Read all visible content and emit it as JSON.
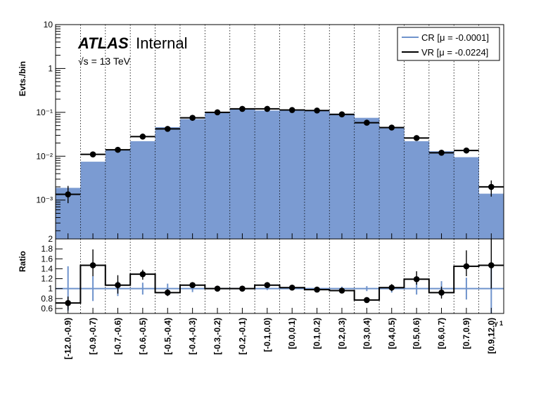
{
  "chart_data": [
    {
      "type": "bar",
      "panel": "main",
      "ylabel": "Evts./bin",
      "yscale": "log",
      "ylim": [
        0.00013,
        10
      ],
      "yticks": [
        {
          "value": 10,
          "label": "10"
        },
        {
          "value": 1,
          "label": "1"
        },
        {
          "value": 0.1,
          "label": "10⁻¹"
        },
        {
          "value": 0.01,
          "label": "10⁻²"
        },
        {
          "value": 0.001,
          "label": "10⁻³"
        }
      ],
      "grid_x": true,
      "legend_position": "top-right",
      "annotation": {
        "atlas": "ATLAS",
        "status": "Internal",
        "energy": "√s = 13 TeV"
      },
      "categories": [
        "[-12.0,-0.9)",
        "[-0.9,-0.7)",
        "[-0.7,-0.6)",
        "[-0.6,-0.5)",
        "[-0.5,-0.4)",
        "[-0.4,-0.3)",
        "[-0.3,-0.2)",
        "[-0.2,-0.1)",
        "[-0.1,0.0)",
        "[0.0,0.1)",
        "[0.1,0.2)",
        "[0.2,0.3)",
        "[0.3,0.4)",
        "[0.4,0.5)",
        "[0.5,0.6)",
        "[0.6,0.7)",
        "[0.7,0.9)",
        "[0.9,12.0)"
      ],
      "series": [
        {
          "name": "CR [μ = -0.0001]",
          "style": "filled-histogram",
          "color": "#7b9bd2",
          "legend_color": "#6f93cc",
          "values": [
            0.0019,
            0.0075,
            0.014,
            0.022,
            0.046,
            0.07,
            0.1,
            0.12,
            0.11,
            0.11,
            0.11,
            0.093,
            0.075,
            0.044,
            0.022,
            0.013,
            0.0095,
            0.0014
          ]
        },
        {
          "name": "VR [μ = -0.0224]",
          "style": "points-with-errors",
          "color": "#000000",
          "values": [
            0.00135,
            0.011,
            0.014,
            0.028,
            0.042,
            0.075,
            0.1,
            0.12,
            0.12,
            0.113,
            0.11,
            0.09,
            0.058,
            0.045,
            0.026,
            0.012,
            0.0135,
            0.002
          ],
          "err_low": [
            0.00085,
            0.0095,
            0.0125,
            0.0255,
            0.039,
            0.071,
            0.095,
            0.115,
            0.115,
            0.108,
            0.105,
            0.086,
            0.055,
            0.042,
            0.0235,
            0.0105,
            0.0115,
            0.0012
          ],
          "err_high": [
            0.0021,
            0.0128,
            0.016,
            0.031,
            0.045,
            0.079,
            0.105,
            0.126,
            0.126,
            0.118,
            0.115,
            0.094,
            0.062,
            0.048,
            0.0285,
            0.0135,
            0.0155,
            0.0028
          ]
        }
      ]
    },
    {
      "type": "bar",
      "panel": "ratio",
      "ylabel": "Ratio",
      "xlabel": "γ 1",
      "ylim": [
        0.5,
        2
      ],
      "yticks": [
        {
          "value": 0.6,
          "label": "0.6"
        },
        {
          "value": 0.8,
          "label": "0.8"
        },
        {
          "value": 1.0,
          "label": "1"
        },
        {
          "value": 1.2,
          "label": "1.2"
        },
        {
          "value": 1.4,
          "label": "1.4"
        },
        {
          "value": 1.6,
          "label": "1.6"
        },
        {
          "value": 1.8,
          "label": "1.8"
        },
        {
          "value": 2.0,
          "label": "2"
        }
      ],
      "reference_line": 1.0,
      "series": [
        {
          "name": "CR",
          "style": "reference-with-errors",
          "color": "#6f93cc",
          "err_low": [
            0.55,
            0.75,
            0.85,
            0.88,
            0.9,
            0.93,
            0.96,
            0.97,
            0.97,
            0.97,
            0.97,
            0.96,
            0.95,
            0.92,
            0.88,
            0.85,
            0.78,
            0.5
          ],
          "err_high": [
            1.45,
            1.25,
            1.15,
            1.12,
            1.1,
            1.07,
            1.04,
            1.03,
            1.03,
            1.03,
            1.03,
            1.04,
            1.05,
            1.08,
            1.12,
            1.15,
            1.22,
            1.5
          ]
        },
        {
          "name": "VR",
          "style": "points-with-errors",
          "color": "#000000",
          "values": [
            0.71,
            1.47,
            1.07,
            1.29,
            0.92,
            1.07,
            1.0,
            1.0,
            1.07,
            1.02,
            0.98,
            0.96,
            0.77,
            1.02,
            1.19,
            0.92,
            1.45,
            1.47
          ],
          "err_low": [
            0.58,
            1.25,
            0.9,
            1.18,
            0.85,
            1.01,
            0.96,
            0.97,
            1.03,
            0.98,
            0.94,
            0.92,
            0.72,
            0.95,
            1.08,
            0.8,
            1.25,
            1.0
          ],
          "err_high": [
            0.84,
            1.79,
            1.27,
            1.38,
            0.99,
            1.13,
            1.04,
            1.03,
            1.11,
            1.06,
            1.02,
            1.0,
            0.82,
            1.09,
            1.35,
            1.04,
            1.77,
            2.0
          ]
        }
      ]
    }
  ]
}
